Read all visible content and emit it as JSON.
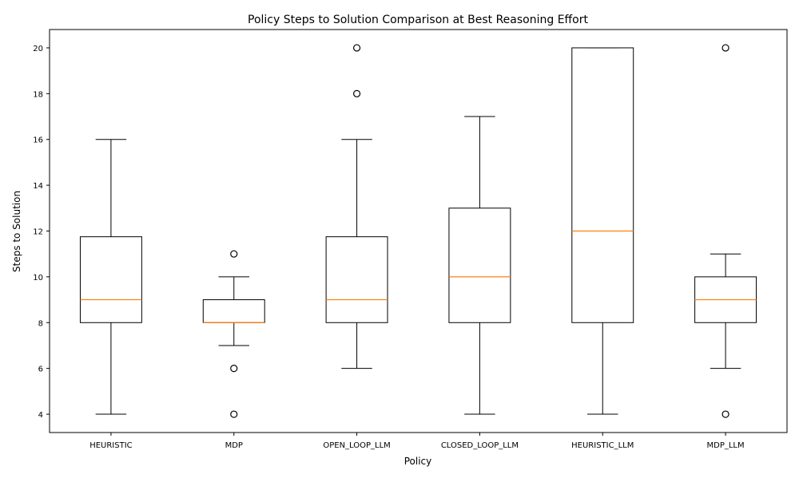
{
  "chart_data": {
    "type": "boxplot",
    "title": "Policy Steps to Solution Comparison at Best Reasoning Effort",
    "xlabel": "Policy",
    "ylabel": "Steps to Solution",
    "ylim": [
      3.2,
      20.8
    ],
    "yticks": [
      4,
      6,
      8,
      10,
      12,
      14,
      16,
      18,
      20
    ],
    "grid": false,
    "colors": {
      "box": "#000000",
      "median": "#ff7f0e"
    },
    "categories": [
      "HEURISTIC",
      "MDP",
      "OPEN_LOOP_LLM",
      "CLOSED_LOOP_LLM",
      "HEURISTIC_LLM",
      "MDP_LLM"
    ],
    "boxes": [
      {
        "whislo": 4,
        "q1": 8,
        "med": 9,
        "q3": 11.75,
        "whishi": 16,
        "fliers": []
      },
      {
        "whislo": 7,
        "q1": 8,
        "med": 8,
        "q3": 9,
        "whishi": 10,
        "fliers": [
          11,
          6,
          4
        ]
      },
      {
        "whislo": 6,
        "q1": 8,
        "med": 9,
        "q3": 11.75,
        "whishi": 16,
        "fliers": [
          18,
          20
        ]
      },
      {
        "whislo": 4,
        "q1": 8,
        "med": 10,
        "q3": 13,
        "whishi": 17,
        "fliers": []
      },
      {
        "whislo": 4,
        "q1": 8,
        "med": 12,
        "q3": 20,
        "whishi": 20,
        "fliers": []
      },
      {
        "whislo": 6,
        "q1": 8,
        "med": 9,
        "q3": 10,
        "whishi": 11,
        "fliers": [
          20,
          4
        ]
      }
    ]
  }
}
